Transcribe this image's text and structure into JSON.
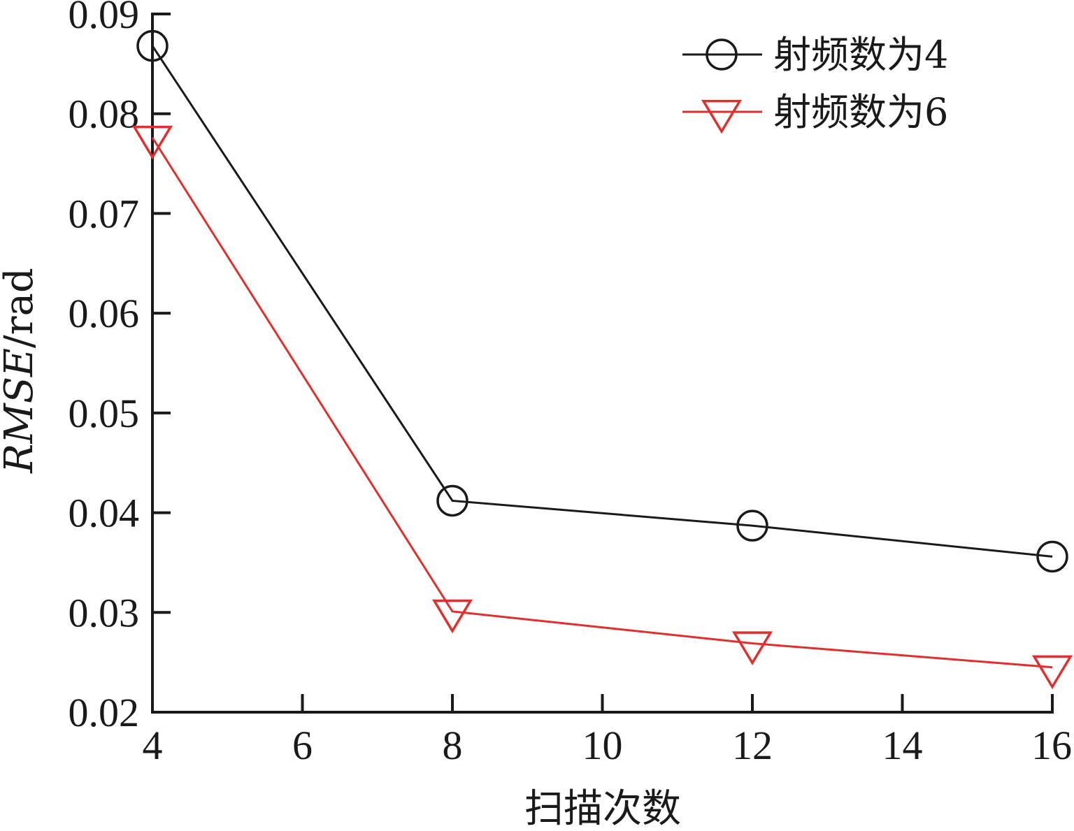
{
  "chart_data": {
    "type": "line",
    "title": "",
    "xlabel": "扫描次数",
    "ylabel": "RMSE/rad",
    "ylabel_parts": {
      "italic": "RMSE",
      "plain": "/rad"
    },
    "xlim": [
      4,
      16
    ],
    "ylim": [
      0.02,
      0.09
    ],
    "xticks": [
      4,
      6,
      8,
      10,
      12,
      14,
      16
    ],
    "xtick_labels": [
      "4",
      "6",
      "8",
      "10",
      "12",
      "14",
      "16"
    ],
    "yticks": [
      0.02,
      0.03,
      0.04,
      0.05,
      0.06,
      0.07,
      0.08,
      0.09
    ],
    "ytick_labels": [
      "0.02",
      "0.03",
      "0.04",
      "0.05",
      "0.06",
      "0.07",
      "0.08",
      "0.09"
    ],
    "grid": false,
    "legend_position": "top-right",
    "x": [
      4,
      8,
      12,
      16
    ],
    "series": [
      {
        "name": "射频数为4",
        "color": "#1a1a1a",
        "marker": "circle-open",
        "values": [
          0.0868,
          0.0412,
          0.0387,
          0.0356
        ]
      },
      {
        "name": "射频数为6",
        "color": "#e0302d",
        "marker": "triangle-down-open",
        "values": [
          0.0776,
          0.0301,
          0.0269,
          0.0245
        ]
      }
    ]
  }
}
